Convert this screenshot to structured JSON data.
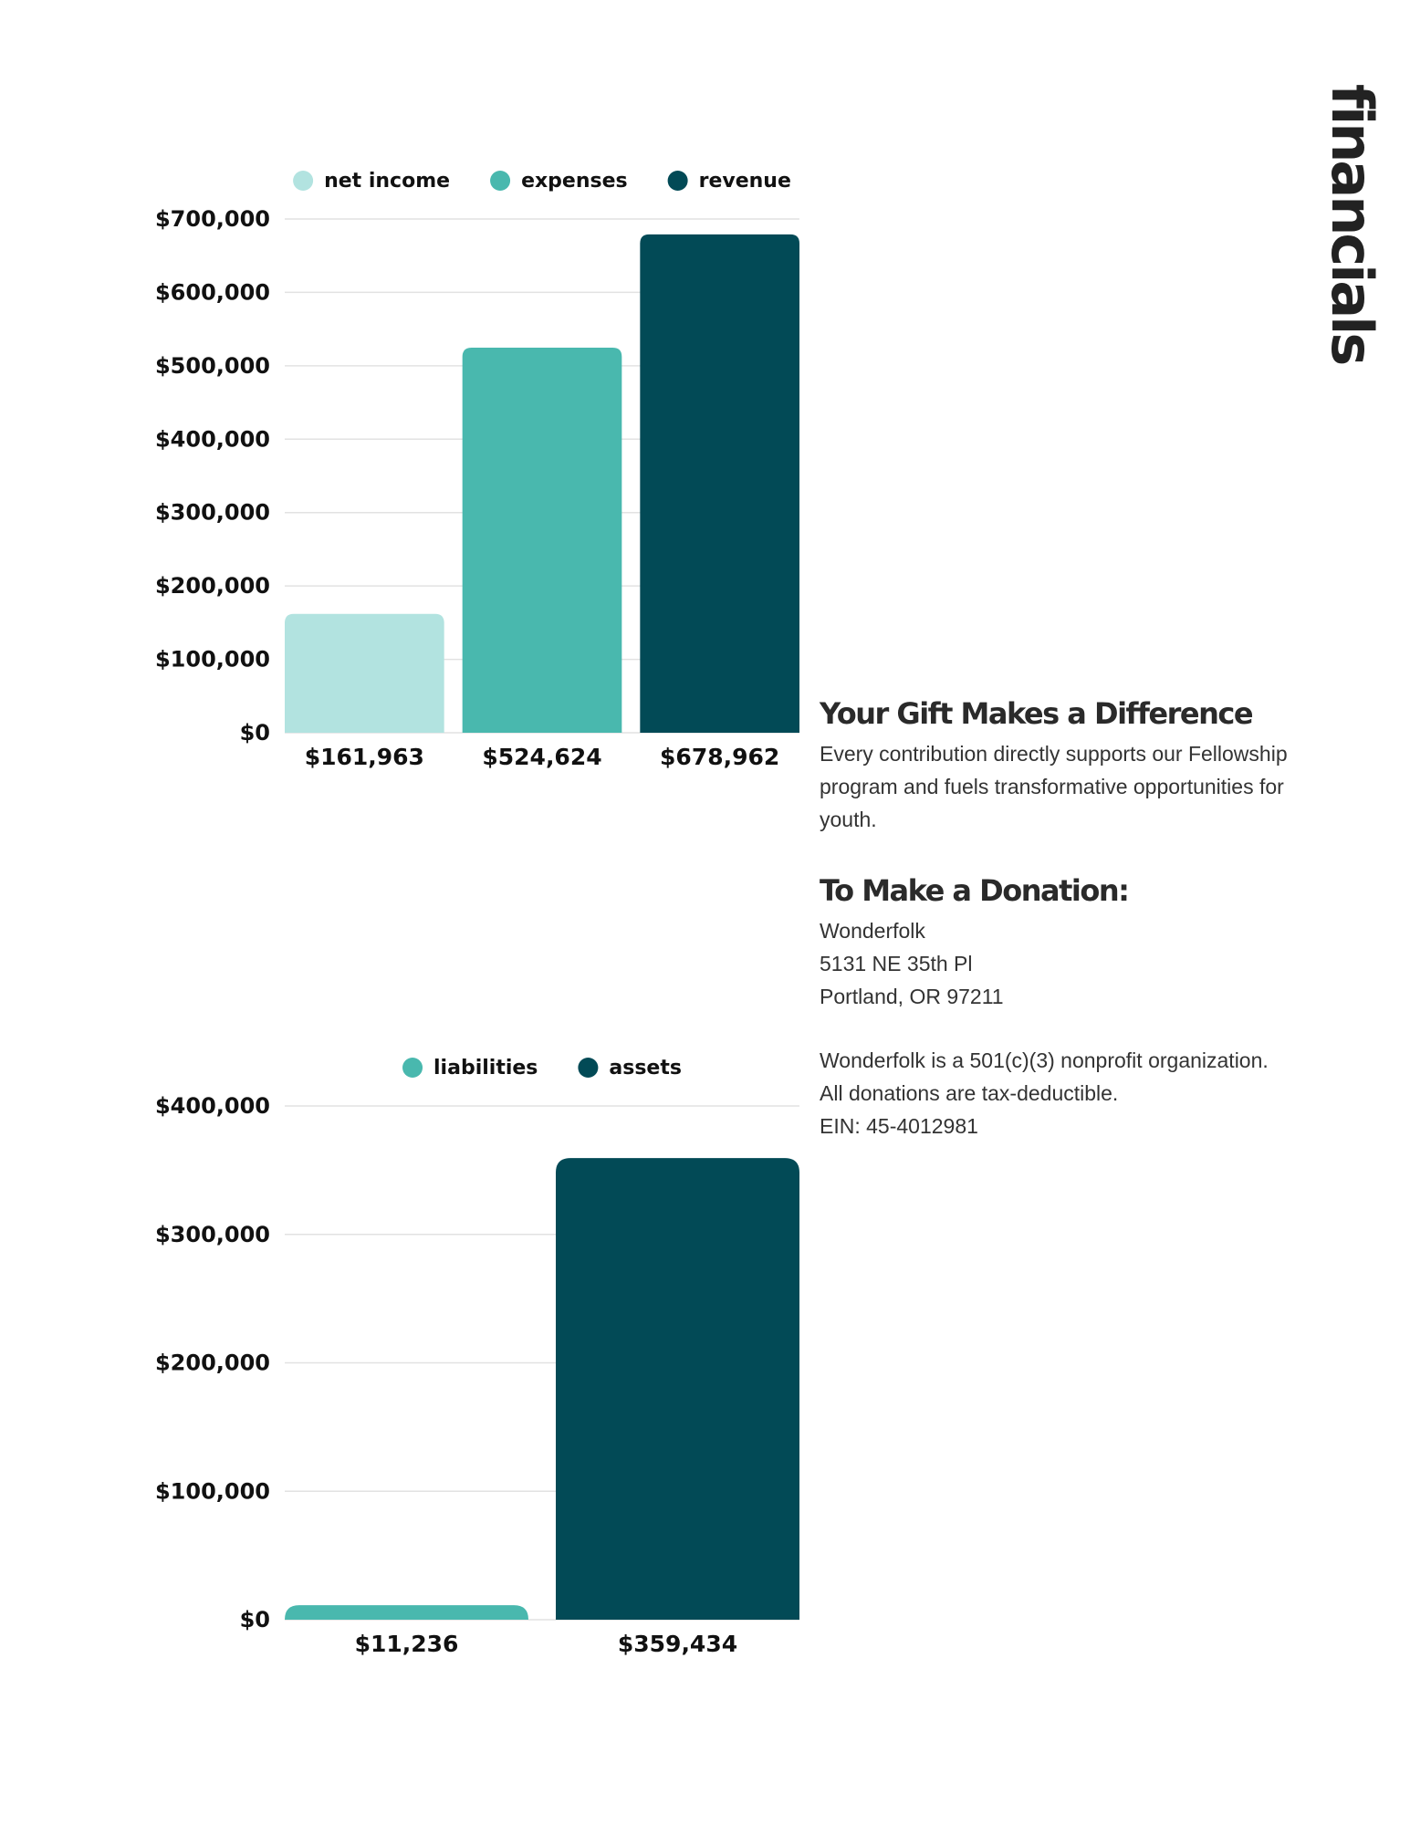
{
  "page_title": "financials",
  "colors": {
    "net_income": "#b2e3e0",
    "expenses": "#49b8ae",
    "revenue": "#024a56",
    "liabilities": "#49b8ae",
    "assets": "#024a56"
  },
  "chart_data": [
    {
      "type": "bar",
      "title": "",
      "categories": [
        "net income",
        "expenses",
        "revenue"
      ],
      "values": [
        161963,
        524624,
        678962
      ],
      "value_labels": [
        "$161,963",
        "$524,624",
        "$678,962"
      ],
      "yticks": [
        "$0",
        "$100,000",
        "$200,000",
        "$300,000",
        "$400,000",
        "$500,000",
        "$600,000",
        "$700,000"
      ],
      "ylim": [
        0,
        700000
      ],
      "legend": [
        "net income",
        "expenses",
        "revenue"
      ],
      "legend_position": "top",
      "grid": true
    },
    {
      "type": "bar",
      "title": "",
      "categories": [
        "liabilities",
        "assets"
      ],
      "values": [
        11236,
        359434
      ],
      "value_labels": [
        "$11,236",
        "$359,434"
      ],
      "yticks": [
        "$0",
        "$100,000",
        "$200,000",
        "$300,000",
        "$400,000"
      ],
      "ylim": [
        0,
        400000
      ],
      "legend": [
        "liabilities",
        "assets"
      ],
      "legend_position": "top",
      "grid": true
    }
  ],
  "gift": {
    "heading": "Your Gift Makes a Difference",
    "text": "Every contribution directly supports our Fellowship program and fuels transformative opportunities for youth."
  },
  "donation": {
    "heading": "To Make a Donation:",
    "org": "Wonderfolk",
    "street": "5131 NE 35th Pl",
    "city": "Portland, OR 97211"
  },
  "nonprofit": {
    "line1": "Wonderfolk is a 501(c)(3) nonprofit organization.",
    "line2": "All donations are tax-deductible.",
    "ein": "EIN: 45-4012981"
  }
}
